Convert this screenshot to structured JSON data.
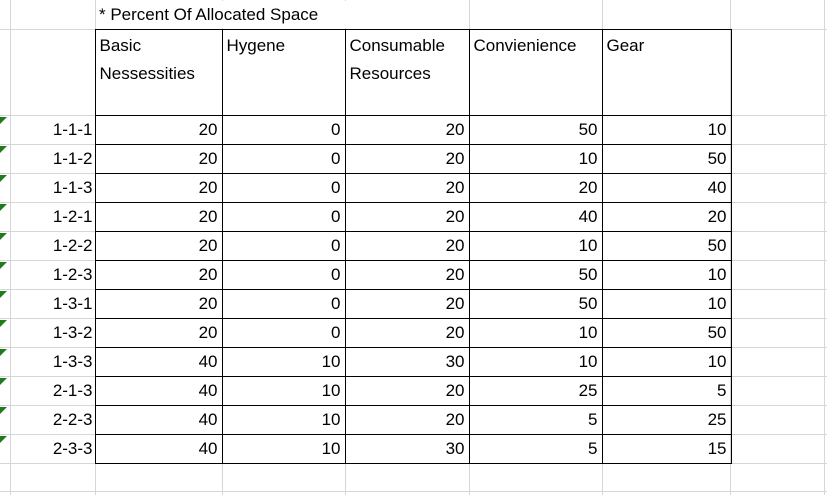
{
  "sheet": {
    "title": "* Percent Of Allocated Space",
    "columns": [
      "Basic Nessessities",
      "Hygene",
      "Consumable Resources",
      "Convienience",
      "Gear"
    ],
    "rows": [
      {
        "label": "1-1-1",
        "values": [
          20,
          0,
          20,
          50,
          10
        ]
      },
      {
        "label": "1-1-2",
        "values": [
          20,
          0,
          20,
          10,
          50
        ]
      },
      {
        "label": "1-1-3",
        "values": [
          20,
          0,
          20,
          20,
          40
        ]
      },
      {
        "label": "1-2-1",
        "values": [
          20,
          0,
          20,
          40,
          20
        ]
      },
      {
        "label": "1-2-2",
        "values": [
          20,
          0,
          20,
          10,
          50
        ]
      },
      {
        "label": "1-2-3",
        "values": [
          20,
          0,
          20,
          50,
          10
        ]
      },
      {
        "label": "1-3-1",
        "values": [
          20,
          0,
          20,
          50,
          10
        ]
      },
      {
        "label": "1-3-2",
        "values": [
          20,
          0,
          20,
          10,
          50
        ]
      },
      {
        "label": "1-3-3",
        "values": [
          40,
          10,
          30,
          10,
          10
        ]
      },
      {
        "label": "2-1-3",
        "values": [
          40,
          10,
          20,
          25,
          5
        ]
      },
      {
        "label": "2-2-3",
        "values": [
          40,
          10,
          20,
          5,
          25
        ]
      },
      {
        "label": "2-3-3",
        "values": [
          40,
          10,
          30,
          5,
          15
        ]
      }
    ],
    "colors": {
      "error_indicator": "#1e7b1e",
      "gridline": "#d6d6d6",
      "table_border": "#000000",
      "text": "#000000"
    }
  }
}
